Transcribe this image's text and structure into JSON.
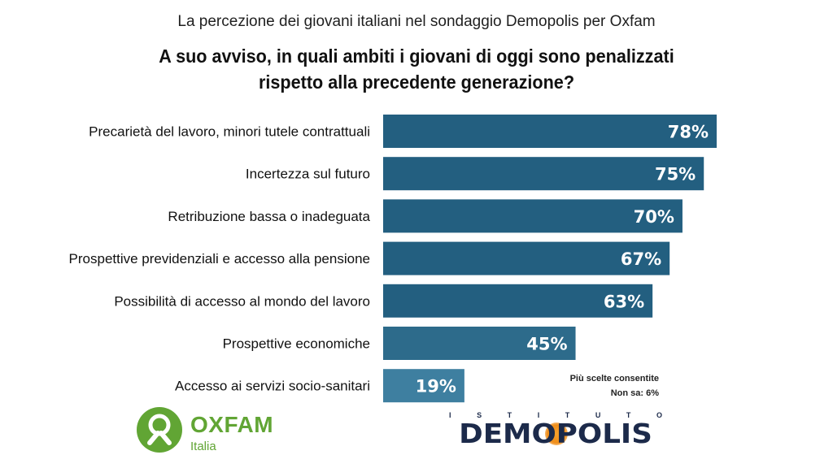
{
  "header": {
    "subtitle": "La percezione dei giovani italiani nel sondaggio Demopolis per Oxfam",
    "title_line1": "A suo avviso, in quali ambiti i giovani di oggi sono penalizzati",
    "title_line2": "rispetto alla precedente generazione?"
  },
  "chart_data": {
    "type": "bar",
    "orientation": "horizontal",
    "categories": [
      "Precarietà del lavoro, minori tutele contrattuali",
      "Incertezza sul futuro",
      "Retribuzione bassa o inadeguata",
      "Prospettive previdenziali e accesso alla pensione",
      "Possibilità di accesso al mondo del lavoro",
      "Prospettive economiche",
      "Accesso ai servizi socio-sanitari"
    ],
    "values": [
      78,
      75,
      70,
      67,
      63,
      45,
      19
    ],
    "value_labels": [
      "78%",
      "75%",
      "70%",
      "67%",
      "63%",
      "45%",
      "19%"
    ],
    "bar_colors": [
      "#235f80",
      "#235f80",
      "#235f80",
      "#235f80",
      "#235f80",
      "#2d6b8b",
      "#3e7fa0"
    ],
    "xlim": [
      0,
      78
    ],
    "grid": false,
    "legend": "none"
  },
  "notes": {
    "line1": "Più scelte consentite",
    "line2": "Non sa: 6%"
  },
  "logos": {
    "oxfam_word": "OXFAM",
    "oxfam_sub": "Italia",
    "oxfam_color": "#61a534",
    "istituto_letters": [
      "I",
      "S",
      "T",
      "I",
      "T",
      "U",
      "T",
      "O"
    ],
    "demopolis_word": "DEMOPOLIS",
    "demopolis_color": "#1c2a4a"
  }
}
